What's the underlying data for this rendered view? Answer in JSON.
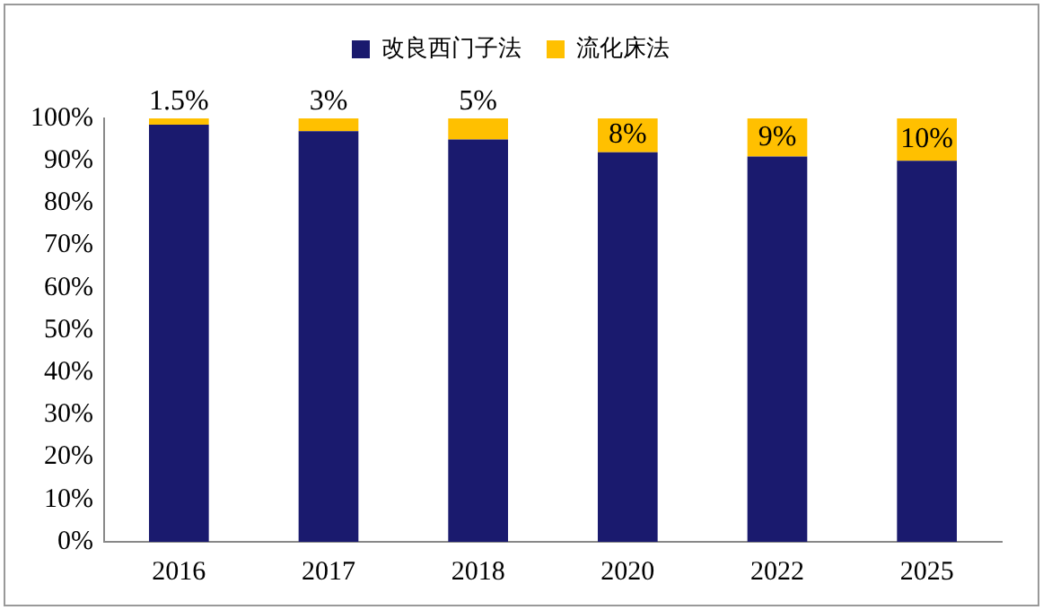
{
  "chart_data": {
    "type": "bar",
    "stacked": true,
    "categories": [
      "2016",
      "2017",
      "2018",
      "2020",
      "2022",
      "2025"
    ],
    "series": [
      {
        "name": "改良西门子法",
        "color": "#1a1a6e",
        "values": [
          98.5,
          97,
          95,
          92,
          91,
          90
        ]
      },
      {
        "name": "流化床法",
        "color": "#ffc000",
        "values": [
          1.5,
          3,
          5,
          8,
          9,
          10
        ],
        "value_labels": [
          "1.5%",
          "3%",
          "5%",
          "8%",
          "9%",
          "10%"
        ]
      }
    ],
    "ylim": [
      0,
      100
    ],
    "yticks": [
      {
        "value": 0,
        "label": "0%"
      },
      {
        "value": 10,
        "label": "10%"
      },
      {
        "value": 20,
        "label": "20%"
      },
      {
        "value": 30,
        "label": "30%"
      },
      {
        "value": 40,
        "label": "40%"
      },
      {
        "value": 50,
        "label": "50%"
      },
      {
        "value": 60,
        "label": "60%"
      },
      {
        "value": 70,
        "label": "70%"
      },
      {
        "value": 80,
        "label": "80%"
      },
      {
        "value": 90,
        "label": "90%"
      },
      {
        "value": 100,
        "label": "100%"
      }
    ],
    "grid": false,
    "legend": "top"
  }
}
